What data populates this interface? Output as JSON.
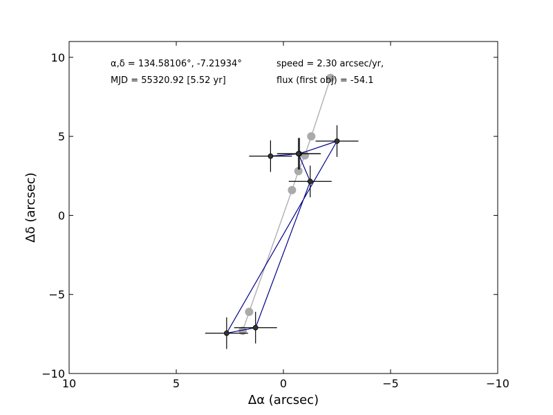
{
  "chart_data": {
    "type": "scatter",
    "title": "",
    "xlabel": "Δα (arcsec)",
    "ylabel": "Δδ (arcsec)",
    "xlim": [
      10,
      -10
    ],
    "ylim": [
      -10,
      11
    ],
    "x_ticks": [
      10,
      5,
      0,
      -5,
      -10
    ],
    "x_tick_labels": [
      "10",
      "5",
      "0",
      "−5",
      "−10"
    ],
    "y_ticks": [
      10,
      5,
      0,
      -5,
      -10
    ],
    "y_tick_labels": [
      "10",
      "5",
      "0",
      "−5",
      "−10"
    ],
    "grid": false,
    "annotations": [
      "α,δ = 134.58106°, -7.21934°",
      "speed = 2.30 arcsec/yr,",
      "MJD = 55320.92 [5.52 yr]",
      "flux (first obj) = -54.1"
    ],
    "colors": {
      "track": "#aaaaaa",
      "path": "#00008b",
      "points": "#333333",
      "errorbars": "#000000"
    },
    "series": [
      {
        "type": "line-with-markers",
        "color": "#aaaaaa",
        "x": [
          1.9,
          1.6,
          -0.4,
          -0.7,
          -1.0,
          -1.3,
          -2.2
        ],
        "y": [
          -7.3,
          -6.1,
          1.6,
          2.8,
          3.8,
          5.0,
          8.7
        ]
      },
      {
        "type": "errorbar-line",
        "color": "#00008b",
        "x": [
          0.6,
          -0.75,
          -2.5,
          2.65,
          1.3,
          -1.25,
          -0.7
        ],
        "y": [
          3.75,
          3.9,
          4.7,
          -7.45,
          -7.1,
          2.15,
          3.9
        ],
        "xerr": [
          1.0,
          1.0,
          1.0,
          1.0,
          1.0,
          1.0,
          1.0
        ],
        "yerr": [
          1.0,
          1.0,
          1.0,
          1.0,
          1.0,
          1.0,
          1.0
        ]
      }
    ]
  }
}
